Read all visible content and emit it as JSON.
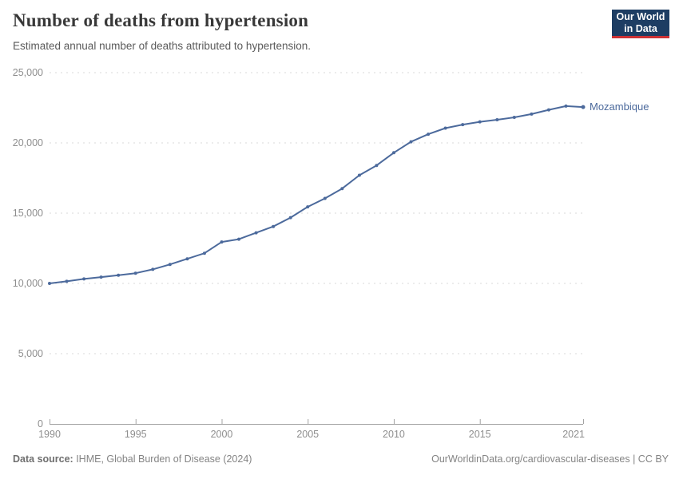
{
  "header": {
    "title": "Number of deaths from hypertension",
    "subtitle": "Estimated annual number of deaths attributed to hypertension.",
    "logo": {
      "line1": "Our World",
      "line2": "in Data"
    }
  },
  "colors": {
    "line": "#4c6a9c",
    "logo_bg": "#1d3d63",
    "logo_accent": "#cd3235",
    "grid": "#dadada",
    "axis": "#a3a3a3",
    "tick_label": "#8e8e8e"
  },
  "chart_data": {
    "type": "line",
    "title": "Number of deaths from hypertension",
    "xlabel": "",
    "ylabel": "",
    "xlim": [
      1990,
      2021
    ],
    "ylim": [
      0,
      25000
    ],
    "x_ticks": [
      1990,
      1995,
      2000,
      2005,
      2010,
      2015,
      2021
    ],
    "y_ticks": [
      0,
      5000,
      10000,
      15000,
      20000,
      25000
    ],
    "grid": "horizontal-dashed",
    "legend_position": "line-end-label",
    "series": [
      {
        "name": "Mozambique",
        "color": "#4c6a9c",
        "x": [
          1990,
          1991,
          1992,
          1993,
          1994,
          1995,
          1996,
          1997,
          1998,
          1999,
          2000,
          2001,
          2002,
          2003,
          2004,
          2005,
          2006,
          2007,
          2008,
          2009,
          2010,
          2011,
          2012,
          2013,
          2014,
          2015,
          2016,
          2017,
          2018,
          2019,
          2020,
          2021
        ],
        "values": [
          10000,
          10150,
          10320,
          10450,
          10580,
          10730,
          11000,
          11350,
          11750,
          12150,
          12950,
          13150,
          13600,
          14050,
          14680,
          15450,
          16050,
          16750,
          17700,
          18400,
          19300,
          20080,
          20620,
          21050,
          21300,
          21500,
          21650,
          21820,
          22050,
          22350,
          22620,
          22550
        ]
      }
    ]
  },
  "footer": {
    "datasource_label": "Data source:",
    "datasource": " IHME, Global Burden of Disease (2024)",
    "credit": "OurWorldinData.org/cardiovascular-diseases | CC BY"
  }
}
